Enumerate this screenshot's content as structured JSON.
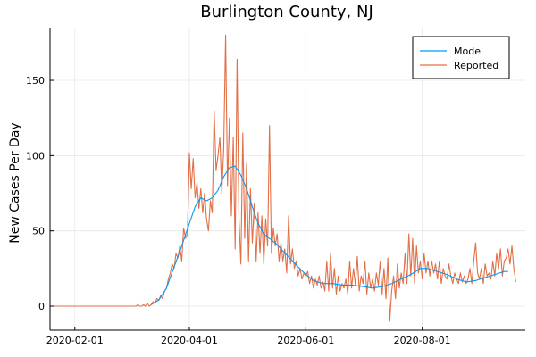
{
  "chart_data": {
    "type": "line",
    "title": "Burlington County, NJ",
    "xlabel": "",
    "ylabel": "New Cases Per Day",
    "x_axis_kind": "date",
    "xlim": [
      "2020-01-19",
      "2020-09-24"
    ],
    "ylim": [
      -16,
      185
    ],
    "x_ticks": [
      "2020-02-01",
      "2020-04-01",
      "2020-06-01",
      "2020-08-01"
    ],
    "y_ticks": [
      0,
      50,
      100,
      150
    ],
    "grid": true,
    "legend_position": "top-right",
    "series": [
      {
        "name": "Model",
        "color": "#009af9",
        "points": [
          [
            "2020-03-12",
            1
          ],
          [
            "2020-03-16",
            4
          ],
          [
            "2020-03-20",
            12
          ],
          [
            "2020-03-24",
            26
          ],
          [
            "2020-03-28",
            40
          ],
          [
            "2020-04-01",
            55
          ],
          [
            "2020-04-04",
            66
          ],
          [
            "2020-04-07",
            72
          ],
          [
            "2020-04-10",
            70
          ],
          [
            "2020-04-13",
            72
          ],
          [
            "2020-04-16",
            77
          ],
          [
            "2020-04-19",
            86
          ],
          [
            "2020-04-22",
            92
          ],
          [
            "2020-04-25",
            93
          ],
          [
            "2020-04-28",
            87
          ],
          [
            "2020-05-01",
            78
          ],
          [
            "2020-05-04",
            66
          ],
          [
            "2020-05-07",
            55
          ],
          [
            "2020-05-10",
            48
          ],
          [
            "2020-05-13",
            45
          ],
          [
            "2020-05-16",
            42
          ],
          [
            "2020-05-19",
            38
          ],
          [
            "2020-05-22",
            34
          ],
          [
            "2020-05-25",
            30
          ],
          [
            "2020-05-28",
            26
          ],
          [
            "2020-06-01",
            21
          ],
          [
            "2020-06-05",
            17
          ],
          [
            "2020-06-10",
            15
          ],
          [
            "2020-06-15",
            15
          ],
          [
            "2020-06-20",
            14
          ],
          [
            "2020-06-25",
            14
          ],
          [
            "2020-07-01",
            13
          ],
          [
            "2020-07-06",
            12
          ],
          [
            "2020-07-11",
            13
          ],
          [
            "2020-07-16",
            15
          ],
          [
            "2020-07-21",
            18
          ],
          [
            "2020-07-26",
            21
          ],
          [
            "2020-07-31",
            25
          ],
          [
            "2020-08-04",
            25
          ],
          [
            "2020-08-09",
            23
          ],
          [
            "2020-08-14",
            21
          ],
          [
            "2020-08-19",
            18
          ],
          [
            "2020-08-24",
            16
          ],
          [
            "2020-08-29",
            17
          ],
          [
            "2020-09-03",
            19
          ],
          [
            "2020-09-08",
            21
          ],
          [
            "2020-09-13",
            23
          ],
          [
            "2020-09-15",
            23
          ]
        ]
      },
      {
        "name": "Reported",
        "color": "#e26f46",
        "points": [
          [
            "2020-01-21",
            0
          ],
          [
            "2020-02-15",
            0
          ],
          [
            "2020-03-04",
            0
          ],
          [
            "2020-03-05",
            1
          ],
          [
            "2020-03-06",
            0
          ],
          [
            "2020-03-07",
            0
          ],
          [
            "2020-03-08",
            1
          ],
          [
            "2020-03-09",
            0
          ],
          [
            "2020-03-10",
            2
          ],
          [
            "2020-03-11",
            0
          ],
          [
            "2020-03-12",
            1
          ],
          [
            "2020-03-13",
            3
          ],
          [
            "2020-03-14",
            2
          ],
          [
            "2020-03-15",
            5
          ],
          [
            "2020-03-16",
            4
          ],
          [
            "2020-03-17",
            7
          ],
          [
            "2020-03-18",
            5
          ],
          [
            "2020-03-19",
            10
          ],
          [
            "2020-03-20",
            12
          ],
          [
            "2020-03-21",
            18
          ],
          [
            "2020-03-22",
            22
          ],
          [
            "2020-03-23",
            28
          ],
          [
            "2020-03-24",
            25
          ],
          [
            "2020-03-25",
            35
          ],
          [
            "2020-03-26",
            32
          ],
          [
            "2020-03-27",
            40
          ],
          [
            "2020-03-28",
            30
          ],
          [
            "2020-03-29",
            52
          ],
          [
            "2020-03-30",
            45
          ],
          [
            "2020-03-31",
            48
          ],
          [
            "2020-04-01",
            102
          ],
          [
            "2020-04-02",
            78
          ],
          [
            "2020-04-03",
            98
          ],
          [
            "2020-04-04",
            72
          ],
          [
            "2020-04-05",
            82
          ],
          [
            "2020-04-06",
            65
          ],
          [
            "2020-04-07",
            78
          ],
          [
            "2020-04-08",
            62
          ],
          [
            "2020-04-09",
            75
          ],
          [
            "2020-04-10",
            58
          ],
          [
            "2020-04-11",
            50
          ],
          [
            "2020-04-12",
            70
          ],
          [
            "2020-04-13",
            62
          ],
          [
            "2020-04-14",
            130
          ],
          [
            "2020-04-15",
            90
          ],
          [
            "2020-04-16",
            100
          ],
          [
            "2020-04-17",
            112
          ],
          [
            "2020-04-18",
            75
          ],
          [
            "2020-04-19",
            105
          ],
          [
            "2020-04-20",
            180
          ],
          [
            "2020-04-21",
            80
          ],
          [
            "2020-04-22",
            125
          ],
          [
            "2020-04-23",
            60
          ],
          [
            "2020-04-24",
            112
          ],
          [
            "2020-04-25",
            38
          ],
          [
            "2020-04-26",
            164
          ],
          [
            "2020-04-27",
            58
          ],
          [
            "2020-04-28",
            28
          ],
          [
            "2020-04-29",
            115
          ],
          [
            "2020-04-30",
            45
          ],
          [
            "2020-05-01",
            95
          ],
          [
            "2020-05-02",
            30
          ],
          [
            "2020-05-03",
            78
          ],
          [
            "2020-05-04",
            42
          ],
          [
            "2020-05-05",
            68
          ],
          [
            "2020-05-06",
            30
          ],
          [
            "2020-05-07",
            62
          ],
          [
            "2020-05-08",
            35
          ],
          [
            "2020-05-09",
            60
          ],
          [
            "2020-05-10",
            28
          ],
          [
            "2020-05-11",
            58
          ],
          [
            "2020-05-12",
            40
          ],
          [
            "2020-05-13",
            120
          ],
          [
            "2020-05-14",
            35
          ],
          [
            "2020-05-15",
            52
          ],
          [
            "2020-05-16",
            40
          ],
          [
            "2020-05-17",
            48
          ],
          [
            "2020-05-18",
            30
          ],
          [
            "2020-05-19",
            42
          ],
          [
            "2020-05-20",
            30
          ],
          [
            "2020-05-21",
            38
          ],
          [
            "2020-05-22",
            22
          ],
          [
            "2020-05-23",
            60
          ],
          [
            "2020-05-24",
            28
          ],
          [
            "2020-05-25",
            38
          ],
          [
            "2020-05-26",
            25
          ],
          [
            "2020-05-27",
            30
          ],
          [
            "2020-05-28",
            20
          ],
          [
            "2020-05-29",
            25
          ],
          [
            "2020-05-30",
            18
          ],
          [
            "2020-05-31",
            22
          ],
          [
            "2020-06-01",
            20
          ],
          [
            "2020-06-02",
            23
          ],
          [
            "2020-06-03",
            15
          ],
          [
            "2020-06-04",
            20
          ],
          [
            "2020-06-05",
            12
          ],
          [
            "2020-06-06",
            18
          ],
          [
            "2020-06-07",
            14
          ],
          [
            "2020-06-08",
            20
          ],
          [
            "2020-06-09",
            12
          ],
          [
            "2020-06-10",
            16
          ],
          [
            "2020-06-11",
            10
          ],
          [
            "2020-06-12",
            30
          ],
          [
            "2020-06-13",
            10
          ],
          [
            "2020-06-14",
            35
          ],
          [
            "2020-06-15",
            12
          ],
          [
            "2020-06-16",
            25
          ],
          [
            "2020-06-17",
            8
          ],
          [
            "2020-06-18",
            20
          ],
          [
            "2020-06-19",
            10
          ],
          [
            "2020-06-20",
            15
          ],
          [
            "2020-06-21",
            12
          ],
          [
            "2020-06-22",
            18
          ],
          [
            "2020-06-23",
            8
          ],
          [
            "2020-06-24",
            30
          ],
          [
            "2020-06-25",
            12
          ],
          [
            "2020-06-26",
            25
          ],
          [
            "2020-06-27",
            14
          ],
          [
            "2020-06-28",
            33
          ],
          [
            "2020-06-29",
            10
          ],
          [
            "2020-06-30",
            20
          ],
          [
            "2020-07-01",
            15
          ],
          [
            "2020-07-02",
            30
          ],
          [
            "2020-07-03",
            8
          ],
          [
            "2020-07-04",
            22
          ],
          [
            "2020-07-05",
            12
          ],
          [
            "2020-07-06",
            18
          ],
          [
            "2020-07-07",
            10
          ],
          [
            "2020-07-08",
            22
          ],
          [
            "2020-07-09",
            14
          ],
          [
            "2020-07-10",
            30
          ],
          [
            "2020-07-11",
            8
          ],
          [
            "2020-07-12",
            25
          ],
          [
            "2020-07-13",
            5
          ],
          [
            "2020-07-14",
            32
          ],
          [
            "2020-07-15",
            -10
          ],
          [
            "2020-07-16",
            10
          ],
          [
            "2020-07-17",
            20
          ],
          [
            "2020-07-18",
            5
          ],
          [
            "2020-07-19",
            28
          ],
          [
            "2020-07-20",
            12
          ],
          [
            "2020-07-21",
            22
          ],
          [
            "2020-07-22",
            15
          ],
          [
            "2020-07-23",
            35
          ],
          [
            "2020-07-24",
            15
          ],
          [
            "2020-07-25",
            48
          ],
          [
            "2020-07-26",
            20
          ],
          [
            "2020-07-27",
            45
          ],
          [
            "2020-07-28",
            15
          ],
          [
            "2020-07-29",
            40
          ],
          [
            "2020-07-30",
            22
          ],
          [
            "2020-07-31",
            30
          ],
          [
            "2020-08-01",
            18
          ],
          [
            "2020-08-02",
            35
          ],
          [
            "2020-08-03",
            22
          ],
          [
            "2020-08-04",
            30
          ],
          [
            "2020-08-05",
            20
          ],
          [
            "2020-08-06",
            30
          ],
          [
            "2020-08-07",
            22
          ],
          [
            "2020-08-08",
            28
          ],
          [
            "2020-08-09",
            18
          ],
          [
            "2020-08-10",
            30
          ],
          [
            "2020-08-11",
            15
          ],
          [
            "2020-08-12",
            25
          ],
          [
            "2020-08-13",
            20
          ],
          [
            "2020-08-14",
            18
          ],
          [
            "2020-08-15",
            28
          ],
          [
            "2020-08-16",
            20
          ],
          [
            "2020-08-17",
            15
          ],
          [
            "2020-08-18",
            22
          ],
          [
            "2020-08-19",
            18
          ],
          [
            "2020-08-20",
            15
          ],
          [
            "2020-08-21",
            22
          ],
          [
            "2020-08-22",
            16
          ],
          [
            "2020-08-23",
            20
          ],
          [
            "2020-08-24",
            15
          ],
          [
            "2020-08-25",
            18
          ],
          [
            "2020-08-26",
            25
          ],
          [
            "2020-08-27",
            15
          ],
          [
            "2020-08-28",
            30
          ],
          [
            "2020-08-29",
            42
          ],
          [
            "2020-08-30",
            22
          ],
          [
            "2020-08-31",
            18
          ],
          [
            "2020-09-01",
            25
          ],
          [
            "2020-09-02",
            15
          ],
          [
            "2020-09-03",
            28
          ],
          [
            "2020-09-04",
            20
          ],
          [
            "2020-09-05",
            22
          ],
          [
            "2020-09-06",
            18
          ],
          [
            "2020-09-07",
            30
          ],
          [
            "2020-09-08",
            20
          ],
          [
            "2020-09-09",
            35
          ],
          [
            "2020-09-10",
            25
          ],
          [
            "2020-09-11",
            38
          ],
          [
            "2020-09-12",
            20
          ],
          [
            "2020-09-13",
            30
          ],
          [
            "2020-09-14",
            32
          ],
          [
            "2020-09-15",
            38
          ],
          [
            "2020-09-16",
            28
          ],
          [
            "2020-09-17",
            40
          ],
          [
            "2020-09-18",
            25
          ],
          [
            "2020-09-19",
            16
          ]
        ]
      }
    ]
  }
}
